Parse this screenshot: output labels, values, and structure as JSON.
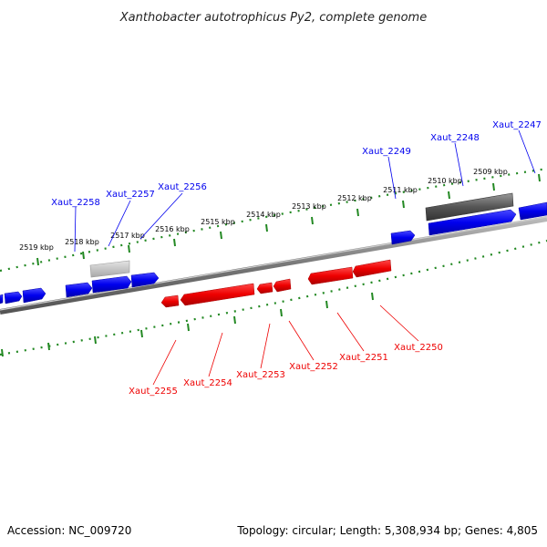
{
  "title": "Xanthobacter autotrophicus Py2, complete genome",
  "footer": {
    "accession": "Accession: NC_009720",
    "summary": "Topology: circular; Length: 5,308,934 bp; Genes: 4,805"
  },
  "colors": {
    "forward": "#0000ee",
    "reverse": "#ee0000",
    "backbone": "#888888",
    "ticks": "#228822",
    "grey_gene": "#666666",
    "light_gene": "#bbbbbb"
  },
  "ticks": [
    {
      "label": "2509 kbp"
    },
    {
      "label": "2510 kbp"
    },
    {
      "label": "2511 kbp"
    },
    {
      "label": "2512 kbp"
    },
    {
      "label": "2513 kbp"
    },
    {
      "label": "2514 kbp"
    },
    {
      "label": "2515 kbp"
    },
    {
      "label": "2516 kbp"
    },
    {
      "label": "2517 kbp"
    },
    {
      "label": "2518 kbp"
    },
    {
      "label": "2519 kbp"
    }
  ],
  "genes": {
    "forward": [
      {
        "label": "Xaut_2247"
      },
      {
        "label": "Xaut_2248"
      },
      {
        "label": "Xaut_2249"
      },
      {
        "label": "Xaut_2256"
      },
      {
        "label": "Xaut_2257"
      },
      {
        "label": "Xaut_2258"
      }
    ],
    "reverse": [
      {
        "label": "Xaut_2250"
      },
      {
        "label": "Xaut_2251"
      },
      {
        "label": "Xaut_2252"
      },
      {
        "label": "Xaut_2253"
      },
      {
        "label": "Xaut_2254"
      },
      {
        "label": "Xaut_2255"
      }
    ]
  }
}
